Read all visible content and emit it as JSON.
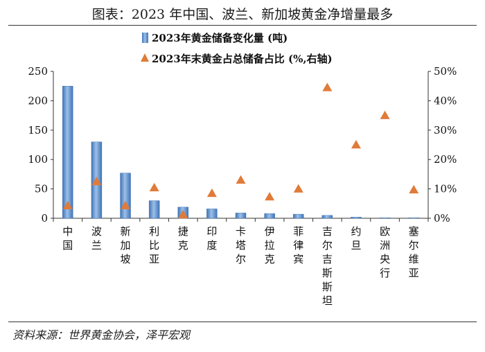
{
  "title": "图表：2023 年中国、波兰、新加坡黄金净增量最多",
  "source": "资料来源：世界黄金协会，泽平宏观",
  "colors": {
    "bar": "#4f86c6",
    "bar_light": "#a9c8ea",
    "marker": "#e07b39"
  },
  "chart_data": {
    "type": "bar",
    "categories": [
      "中国",
      "波兰",
      "新加坡",
      "利比亚",
      "捷克",
      "印度",
      "卡塔尔",
      "伊拉克",
      "菲律宾",
      "吉尔吉斯斯坦",
      "约旦",
      "欧洲央行",
      "塞尔维亚"
    ],
    "series": [
      {
        "name": "2023年黄金储备变化量 (吨)",
        "type": "bar",
        "axis": "left",
        "values": [
          225,
          130,
          77,
          30,
          19,
          16,
          9,
          8,
          7,
          5,
          2,
          1,
          1
        ]
      },
      {
        "name": "2023年末黄金占总储备占比 (%,右轴)",
        "type": "scatter",
        "axis": "right",
        "values": [
          4.3,
          12.5,
          4.3,
          10.4,
          1.2,
          8.5,
          13.0,
          7.3,
          10.0,
          44.5,
          25.0,
          35.0,
          9.7
        ]
      }
    ],
    "y_left": {
      "min": 0,
      "max": 250,
      "ticks": [
        0,
        50,
        100,
        150,
        200,
        250
      ]
    },
    "y_right": {
      "min": 0,
      "max": 50,
      "ticks": [
        "0%",
        "10%",
        "20%",
        "30%",
        "40%",
        "50%"
      ]
    },
    "legend": "top-left",
    "grid": false
  }
}
